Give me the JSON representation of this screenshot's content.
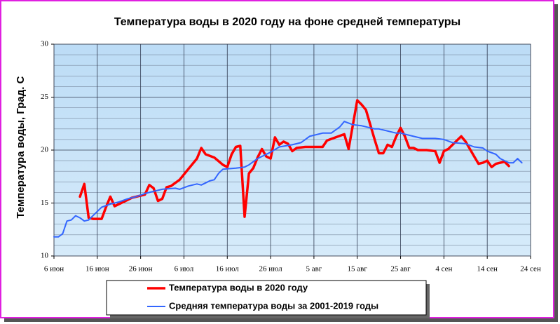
{
  "chart_data": {
    "type": "line",
    "title": "Температура воды в 2020 году на фоне средней температуры",
    "y_label": "Температура воды, Град. С",
    "xlim": [
      0,
      110
    ],
    "xticks": [
      {
        "value": 0,
        "label": "6 июн"
      },
      {
        "value": 10,
        "label": "16 июн"
      },
      {
        "value": 20,
        "label": "26 июн"
      },
      {
        "value": 30,
        "label": "6 июл"
      },
      {
        "value": 40,
        "label": "16 июл"
      },
      {
        "value": 50,
        "label": "26 июл"
      },
      {
        "value": 60,
        "label": "5 авг"
      },
      {
        "value": 70,
        "label": "15 авг"
      },
      {
        "value": 80,
        "label": "25 авг"
      },
      {
        "value": 90,
        "label": "4 сен"
      },
      {
        "value": 100,
        "label": "14 сен"
      },
      {
        "value": 110,
        "label": "24 сен"
      }
    ],
    "ylim": [
      10,
      30
    ],
    "yticks": [
      10,
      15,
      20,
      25,
      30
    ],
    "yticks_minor": [
      11,
      12,
      13,
      14,
      16,
      17,
      18,
      19,
      21,
      22,
      23,
      24,
      26,
      27,
      28,
      29
    ],
    "grid": true,
    "legend": "bottom",
    "series": [
      {
        "name": "Температура воды в 2020 году",
        "color": "#ff0000",
        "x": [
          6,
          7,
          8,
          9,
          11,
          12,
          13,
          14,
          16,
          18,
          21,
          22,
          23,
          24,
          25,
          26,
          27,
          29,
          31,
          33,
          34,
          35,
          37,
          39,
          40,
          41,
          42,
          43,
          44,
          45,
          46,
          47,
          48,
          49,
          50,
          51,
          52,
          53,
          54,
          55,
          56,
          58,
          61,
          62,
          63,
          65,
          67,
          68,
          70,
          71,
          72,
          74,
          75,
          76,
          77,
          78,
          79,
          80,
          81,
          82,
          83,
          84,
          86,
          88,
          89,
          90,
          91,
          93,
          94,
          95,
          97,
          98,
          99,
          100,
          101,
          102,
          104,
          105
        ],
        "values": [
          15.6,
          16.8,
          13.6,
          13.5,
          13.5,
          14.6,
          15.6,
          14.7,
          15.1,
          15.5,
          15.8,
          16.7,
          16.4,
          15.2,
          15.4,
          16.5,
          16.6,
          17.2,
          18.2,
          19.2,
          20.2,
          19.6,
          19.3,
          18.6,
          18.4,
          19.6,
          20.3,
          20.4,
          13.7,
          17.8,
          18.3,
          19.3,
          20.1,
          19.4,
          19.2,
          21.2,
          20.5,
          20.8,
          20.6,
          19.9,
          20.2,
          20.3,
          20.3,
          20.3,
          20.9,
          21.2,
          21.5,
          20.1,
          24.7,
          24.3,
          23.8,
          21.0,
          19.7,
          19.7,
          20.5,
          20.3,
          21.3,
          22.1,
          21.3,
          20.2,
          20.2,
          20.0,
          20.0,
          19.9,
          18.8,
          19.9,
          20.1,
          20.9,
          21.3,
          20.8,
          19.4,
          18.7,
          18.8,
          19.0,
          18.4,
          18.7,
          18.9,
          18.5
        ]
      },
      {
        "name": "Средняя температура воды за 2001-2019 годы",
        "color": "#3366ff",
        "x": [
          0,
          1,
          2,
          3,
          4,
          5,
          6,
          7,
          8,
          9,
          11,
          13,
          15,
          17,
          19,
          21,
          23,
          25,
          28,
          29,
          31,
          33,
          34,
          36,
          37,
          38,
          39,
          42,
          44,
          45,
          47,
          50,
          52,
          55,
          57,
          59,
          62,
          64,
          66,
          67,
          69,
          71,
          74,
          75,
          77,
          79,
          80,
          83,
          85,
          88,
          90,
          92,
          95,
          97,
          99,
          100,
          102,
          103,
          105,
          106,
          107,
          108
        ],
        "values": [
          11.8,
          11.8,
          12.1,
          13.3,
          13.4,
          13.8,
          13.6,
          13.3,
          13.4,
          13.8,
          14.6,
          14.9,
          15.1,
          15.4,
          15.6,
          15.9,
          16.1,
          16.3,
          16.4,
          16.3,
          16.6,
          16.8,
          16.7,
          17.1,
          17.2,
          17.8,
          18.2,
          18.3,
          18.4,
          18.6,
          19.2,
          19.8,
          20.3,
          20.5,
          20.7,
          21.3,
          21.6,
          21.6,
          22.2,
          22.7,
          22.4,
          22.3,
          22.0,
          22.0,
          21.8,
          21.6,
          21.6,
          21.3,
          21.1,
          21.1,
          21.0,
          20.7,
          20.6,
          20.3,
          20.2,
          19.9,
          19.6,
          19.2,
          18.8,
          18.8,
          19.2,
          18.8
        ]
      }
    ]
  }
}
